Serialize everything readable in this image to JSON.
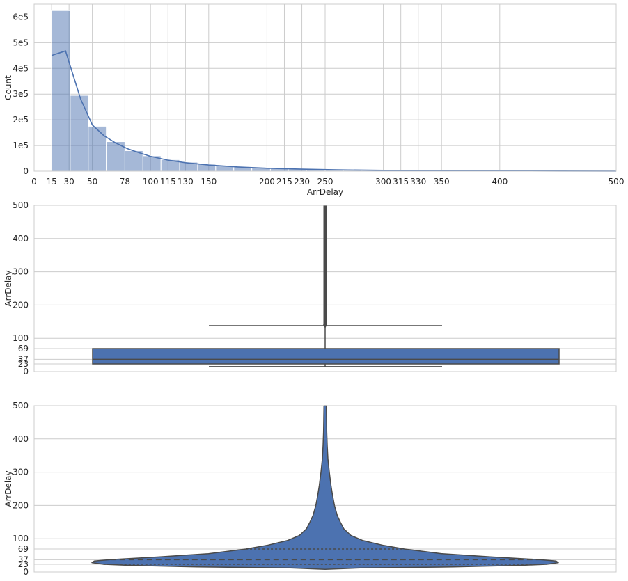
{
  "chart_data": [
    {
      "type": "histogram",
      "xlabel": "ArrDelay",
      "ylabel": "Count",
      "xlim": [
        0,
        500
      ],
      "ylim": [
        0,
        650000
      ],
      "xticks": [
        0,
        15,
        30,
        50,
        78,
        100,
        115,
        130,
        150,
        200,
        215,
        230,
        250,
        300,
        315,
        330,
        350,
        400,
        500
      ],
      "yticks": [
        0,
        100000,
        200000,
        300000,
        400000,
        500000,
        600000
      ],
      "ytick_labels": [
        "0",
        "1e5",
        "2e5",
        "3e5",
        "4e5",
        "5e5",
        "6e5"
      ],
      "grid": true,
      "color": "#4c72b0",
      "bars": [
        {
          "x0": 15,
          "x1": 31,
          "count": 625000
        },
        {
          "x0": 31,
          "x1": 46.5,
          "count": 295000
        },
        {
          "x0": 46.5,
          "x1": 62,
          "count": 175000
        },
        {
          "x0": 62,
          "x1": 78,
          "count": 115000
        },
        {
          "x0": 78,
          "x1": 93.5,
          "count": 80000
        },
        {
          "x0": 93.5,
          "x1": 109,
          "count": 60000
        },
        {
          "x0": 109,
          "x1": 125,
          "count": 45000
        },
        {
          "x0": 125,
          "x1": 140.5,
          "count": 35000
        },
        {
          "x0": 140.5,
          "x1": 156,
          "count": 27000
        },
        {
          "x0": 156,
          "x1": 171.5,
          "count": 21000
        },
        {
          "x0": 171.5,
          "x1": 187,
          "count": 17000
        },
        {
          "x0": 187,
          "x1": 203,
          "count": 13000
        },
        {
          "x0": 203,
          "x1": 218.5,
          "count": 10000
        },
        {
          "x0": 218.5,
          "x1": 234,
          "count": 8000
        },
        {
          "x0": 234,
          "x1": 250,
          "count": 6500
        },
        {
          "x0": 250,
          "x1": 265.5,
          "count": 5000
        },
        {
          "x0": 265.5,
          "x1": 281,
          "count": 4000
        },
        {
          "x0": 281,
          "x1": 297,
          "count": 3300
        },
        {
          "x0": 297,
          "x1": 312.5,
          "count": 2700
        },
        {
          "x0": 312.5,
          "x1": 328,
          "count": 2200
        },
        {
          "x0": 328,
          "x1": 344,
          "count": 1800
        },
        {
          "x0": 344,
          "x1": 359.5,
          "count": 1500
        },
        {
          "x0": 359.5,
          "x1": 375,
          "count": 1200
        },
        {
          "x0": 375,
          "x1": 390.5,
          "count": 1000
        },
        {
          "x0": 390.5,
          "x1": 406,
          "count": 850
        },
        {
          "x0": 406,
          "x1": 422,
          "count": 700
        },
        {
          "x0": 422,
          "x1": 437.5,
          "count": 600
        },
        {
          "x0": 437.5,
          "x1": 453,
          "count": 500
        },
        {
          "x0": 453,
          "x1": 469,
          "count": 400
        },
        {
          "x0": 469,
          "x1": 484.5,
          "count": 350
        },
        {
          "x0": 484.5,
          "x1": 500,
          "count": 300
        }
      ],
      "kde": {
        "x": [
          15,
          27,
          40,
          50,
          60,
          70,
          80,
          90,
          100,
          115,
          130,
          150,
          175,
          200,
          230,
          260,
          300,
          350,
          400,
          450,
          500
        ],
        "y": [
          450000,
          468000,
          280000,
          180000,
          138000,
          110000,
          88000,
          72000,
          58000,
          43000,
          33000,
          24000,
          16500,
          11500,
          7800,
          5200,
          3300,
          1900,
          1100,
          600,
          350
        ]
      }
    },
    {
      "type": "box",
      "ylabel": "ArrDelay",
      "ylim": [
        0,
        500
      ],
      "yticks": [
        0,
        23,
        37,
        69,
        100,
        200,
        300,
        400,
        500
      ],
      "grid": true,
      "color": "#4c72b0",
      "box": {
        "whislo": 15,
        "q1": 23,
        "med": 37,
        "q3": 69,
        "whishi": 138,
        "fliers_from": 138,
        "fliers_to": 500
      }
    },
    {
      "type": "violin",
      "ylabel": "ArrDelay",
      "ylim": [
        0,
        500
      ],
      "yticks": [
        0,
        23,
        37,
        69,
        100,
        200,
        300,
        400,
        500
      ],
      "grid": true,
      "color": "#4c72b0",
      "quartiles": {
        "q1": 23,
        "median": 37,
        "q3": 69
      },
      "density": {
        "y": [
          8,
          12,
          15,
          20,
          23,
          28,
          33,
          37,
          45,
          55,
          69,
          80,
          95,
          110,
          130,
          150,
          170,
          200,
          230,
          260,
          300,
          340,
          380,
          420,
          460,
          500
        ],
        "width": [
          0.0,
          0.15,
          0.55,
          0.85,
          0.95,
          1.0,
          0.99,
          0.92,
          0.72,
          0.5,
          0.34,
          0.25,
          0.16,
          0.11,
          0.08,
          0.065,
          0.052,
          0.04,
          0.032,
          0.025,
          0.018,
          0.012,
          0.009,
          0.007,
          0.006,
          0.005
        ]
      }
    }
  ]
}
